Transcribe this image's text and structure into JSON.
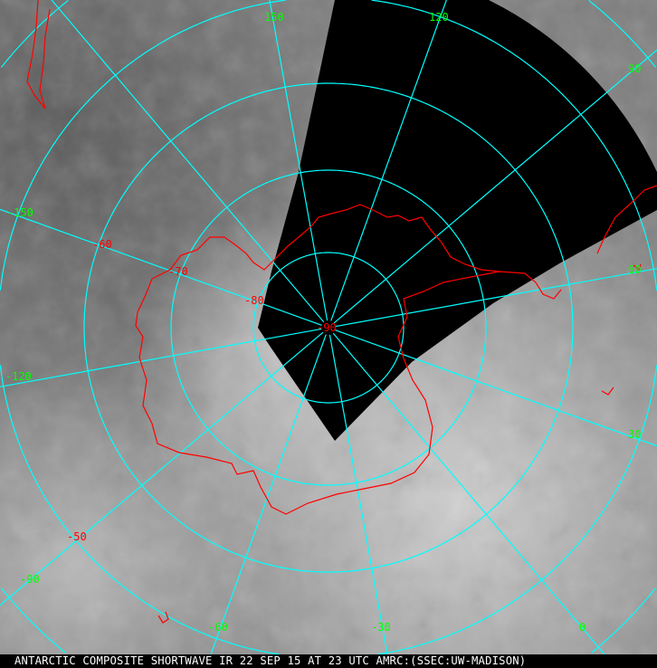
{
  "caption": "ANTARCTIC COMPOSITE SHORTWAVE IR 22 SEP 15 AT 23 UTC AMRC:(SSEC:UW-MADISON)",
  "colors": {
    "grid": "#00ffff",
    "coast": "#ff0000",
    "lon_label": "#00ff00",
    "lat_label": "#ff0000",
    "no_data": "#000000"
  },
  "projection": "south polar stereographic",
  "graticule": {
    "longitudes": [
      0,
      30,
      60,
      90,
      120,
      150,
      180,
      -150,
      -120,
      -90,
      -60,
      -30
    ],
    "latitudes": [
      -80,
      -70,
      -60,
      -50,
      -40
    ]
  },
  "lon_labels": [
    "150",
    "120",
    "90",
    "60",
    "30",
    "0",
    "-30",
    "-60",
    "-90",
    "-120",
    "-150"
  ],
  "lat_labels": [
    "-50",
    "-60",
    "-70",
    "-80",
    "-90"
  ]
}
